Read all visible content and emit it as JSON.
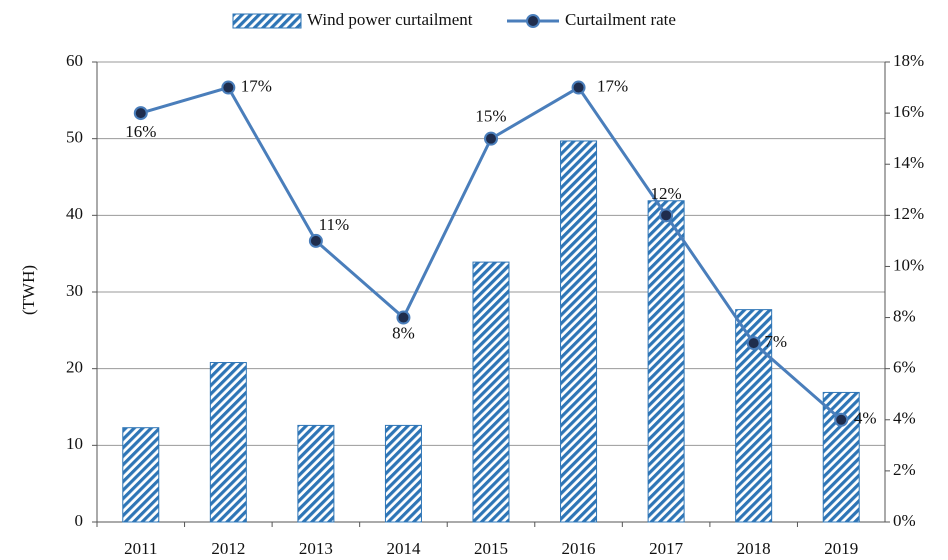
{
  "chart_data": {
    "type": "bar",
    "ylabel": "(TWH)",
    "categories": [
      "2011",
      "2012",
      "2013",
      "2014",
      "2015",
      "2016",
      "2017",
      "2018",
      "2019"
    ],
    "series": [
      {
        "name": "Wind power curtailment",
        "type": "bar",
        "color": "#2e75b6",
        "values": [
          12.3,
          20.8,
          12.6,
          12.6,
          33.9,
          49.7,
          41.9,
          27.7,
          16.9
        ]
      },
      {
        "name": "Curtailment rate",
        "type": "line",
        "axis": "y2",
        "color": "#4a7ebb",
        "marker_color": "#1f2d4d",
        "values": [
          16,
          17,
          11,
          8,
          15,
          17,
          12,
          7,
          4
        ],
        "value_labels": [
          "16%",
          "17%",
          "11%",
          "8%",
          "15%",
          "17%",
          "12%",
          "7%",
          "4%"
        ]
      }
    ],
    "ylim": [
      0,
      60
    ],
    "yticks": [
      0,
      10,
      20,
      30,
      40,
      50,
      60
    ],
    "y2lim": [
      0,
      18
    ],
    "y2ticks": [
      {
        "value": 0,
        "label": "0%"
      },
      {
        "value": 2,
        "label": "2%"
      },
      {
        "value": 4,
        "label": "4%"
      },
      {
        "value": 6,
        "label": "6%"
      },
      {
        "value": 8,
        "label": "8%"
      },
      {
        "value": 10,
        "label": "10%"
      },
      {
        "value": 12,
        "label": "12%"
      },
      {
        "value": 14,
        "label": "14%"
      },
      {
        "value": 16,
        "label": "16%"
      },
      {
        "value": 18,
        "label": "18%"
      }
    ],
    "grid": true
  }
}
